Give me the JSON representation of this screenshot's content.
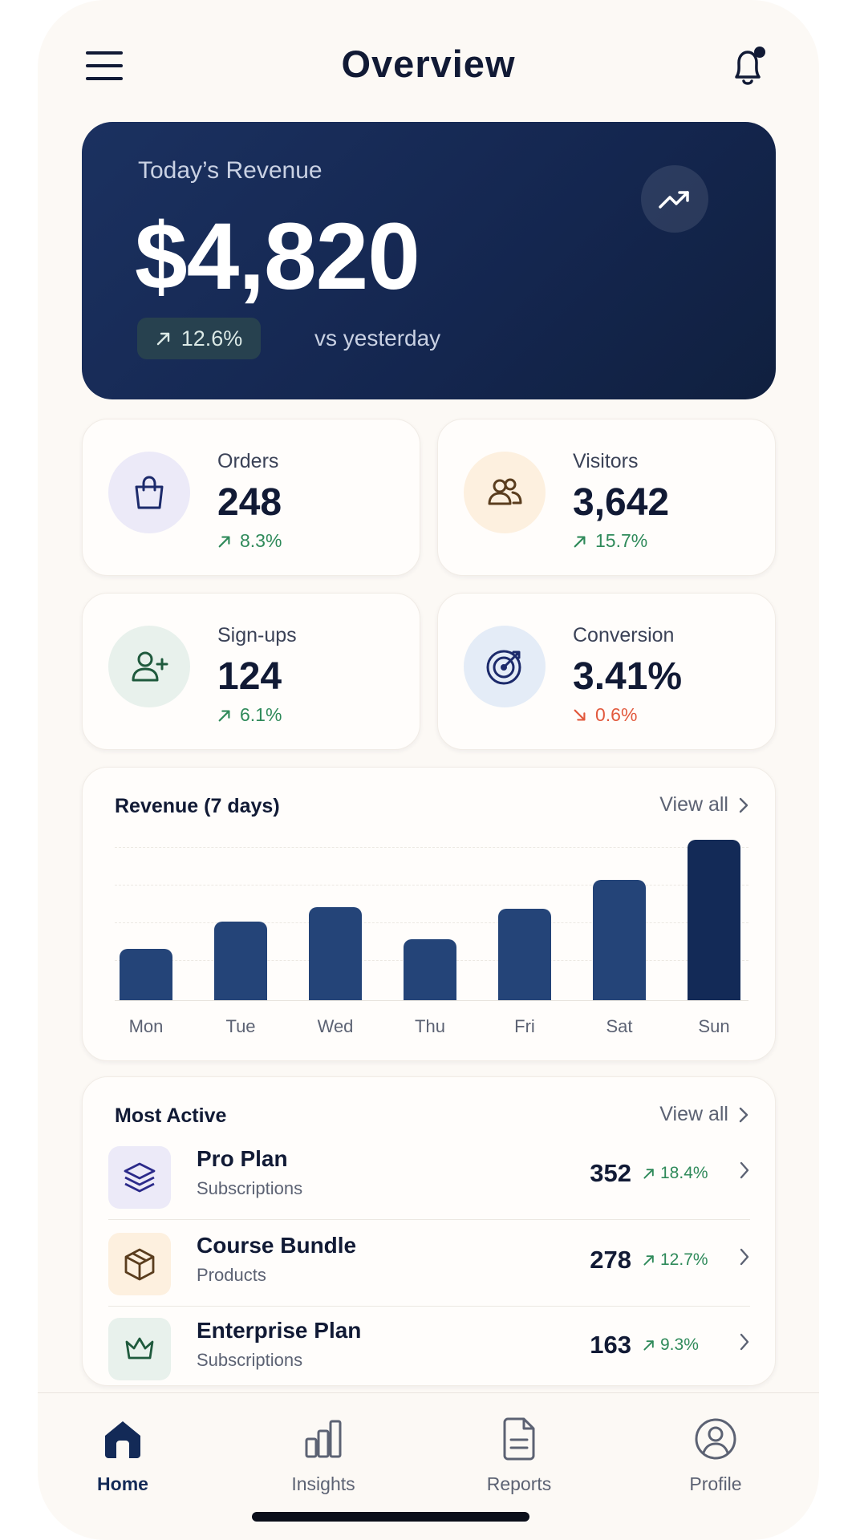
{
  "header": {
    "title": "Overview"
  },
  "hero": {
    "label": "Today’s Revenue",
    "value": "$4,820",
    "change": "12.6%",
    "compare": "vs yesterday"
  },
  "stats": [
    {
      "label": "Orders",
      "value": "248",
      "change": "8.3%",
      "direction": "up",
      "icon": "shopping-bag-icon"
    },
    {
      "label": "Visitors",
      "value": "3,642",
      "change": "15.7%",
      "direction": "up",
      "icon": "users-icon"
    },
    {
      "label": "Sign-ups",
      "value": "124",
      "change": "6.1%",
      "direction": "up",
      "icon": "user-plus-icon"
    },
    {
      "label": "Conversion",
      "value": "3.41%",
      "change": "0.6%",
      "direction": "down",
      "icon": "target-icon"
    }
  ],
  "revenue_panel": {
    "title": "Revenue (7 days)",
    "view_all": "View all"
  },
  "chart_data": {
    "type": "bar",
    "title": "Revenue (7 days)",
    "categories": [
      "Mon",
      "Tue",
      "Wed",
      "Thu",
      "Fri",
      "Sat",
      "Sun"
    ],
    "values": [
      32,
      49,
      58,
      38,
      57,
      75,
      100
    ],
    "highlight": "Sun",
    "grid": true
  },
  "most_active": {
    "title": "Most Active",
    "view_all": "View all",
    "items": [
      {
        "name": "Pro Plan",
        "category": "Subscriptions",
        "count": "352",
        "change": "18.4%",
        "icon": "layers-icon"
      },
      {
        "name": "Course Bundle",
        "category": "Products",
        "count": "278",
        "change": "12.7%",
        "icon": "package-icon"
      },
      {
        "name": "Enterprise Plan",
        "category": "Subscriptions",
        "count": "163",
        "change": "9.3%",
        "icon": "crown-icon"
      }
    ]
  },
  "nav": [
    {
      "label": "Home",
      "active": true
    },
    {
      "label": "Insights",
      "active": false
    },
    {
      "label": "Reports",
      "active": false
    },
    {
      "label": "Profile",
      "active": false
    }
  ],
  "colors": {
    "navy": "#132a57",
    "bar": "#244478",
    "positive": "#2f8a5a",
    "negative": "#e2593d",
    "background": "#fcf9f5"
  }
}
